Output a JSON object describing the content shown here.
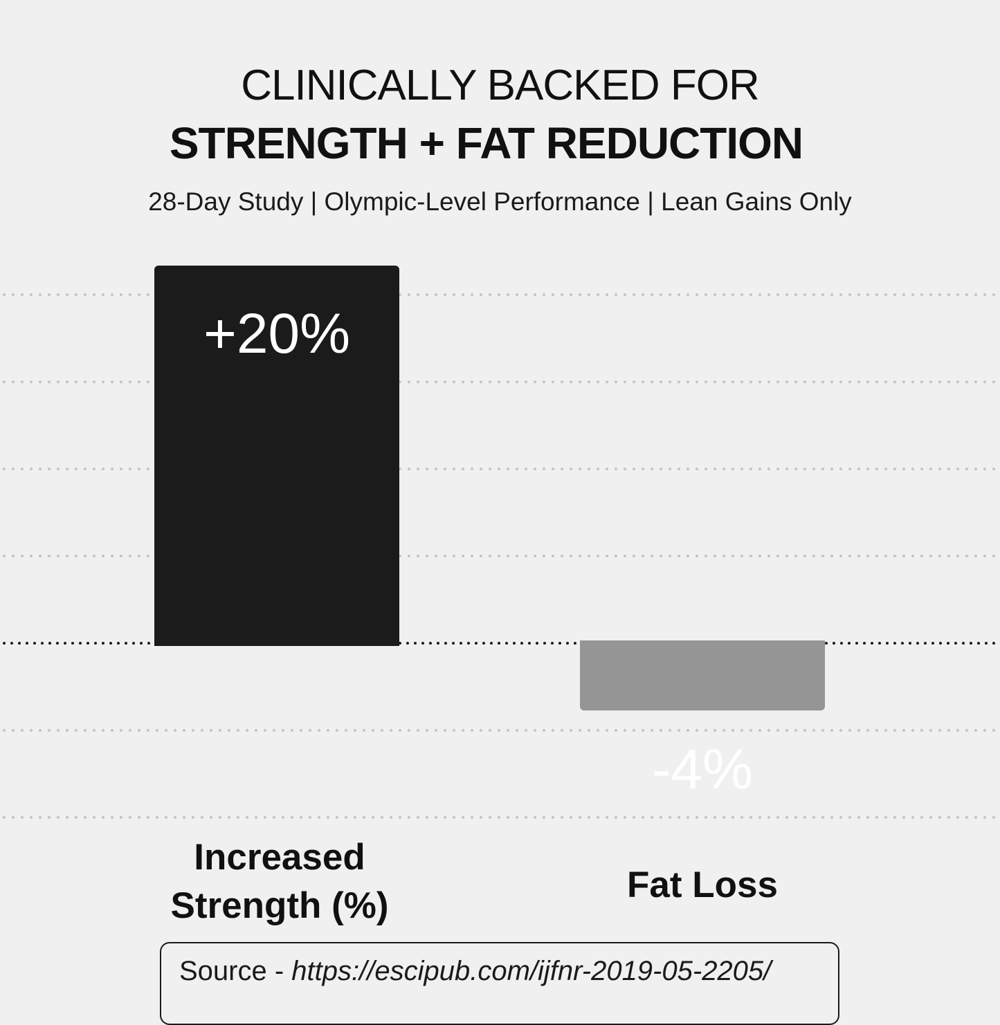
{
  "header": {
    "title_line1": "CLINICALLY BACKED FOR",
    "title_line2": "STRENGTH + FAT REDUCTION",
    "subtitle": "28-Day Study | Olympic-Level Performance | Lean Gains Only"
  },
  "chart_data": {
    "type": "bar",
    "title": "CLINICALLY BACKED FOR STRENGTH + FAT REDUCTION",
    "categories": [
      "Increased Strength (%)",
      "Fat Loss"
    ],
    "category_lines": [
      [
        "Increased",
        "Strength (%)"
      ],
      [
        "Fat Loss"
      ]
    ],
    "values": [
      20,
      -4
    ],
    "data_labels": [
      "+20%",
      "-4%"
    ],
    "bar_colors": [
      "#1b1b1b",
      "#959595"
    ],
    "label_colors": [
      "#ffffff",
      "#ffffff"
    ],
    "xlabel": "",
    "ylabel": "",
    "ylim": [
      -10,
      20
    ],
    "grid_step": 4.7,
    "grid": true,
    "zero_line": true,
    "legend": "none"
  },
  "source": {
    "prefix": "Source - ",
    "url": "https://escipub.com/ijfnr-2019-05-2205/"
  },
  "colors": {
    "background": "#f0f0f0",
    "grid": "#c4c4c4",
    "zero_line": "#1a1a1a",
    "text": "#111111"
  }
}
